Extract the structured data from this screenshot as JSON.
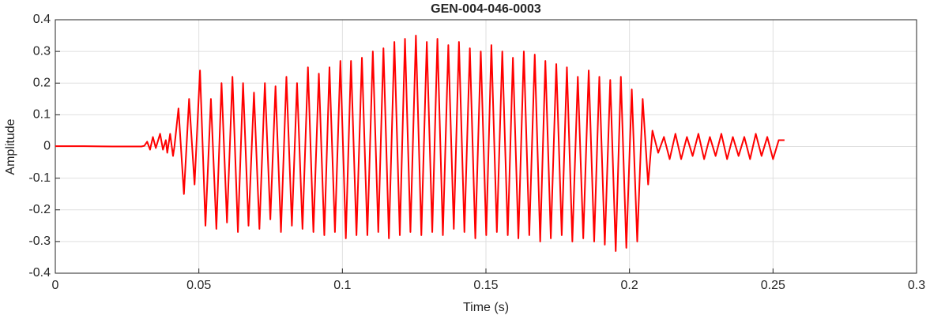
{
  "chart_data": {
    "type": "line",
    "title": "GEN-004-046-0003",
    "xlabel": "Time (s)",
    "ylabel": "Amplitude",
    "color": "#ff0000",
    "grid": true,
    "xlim": [
      0,
      0.3
    ],
    "xticks": [
      0,
      0.05,
      0.1,
      0.15,
      0.2,
      0.25,
      0.3
    ],
    "ylim": [
      -0.4,
      0.4
    ],
    "yticks": [
      -0.4,
      -0.3,
      -0.2,
      -0.1,
      0,
      0.1,
      0.2,
      0.3,
      0.4
    ],
    "x": [
      0,
      0.01,
      0.02,
      0.03,
      0.031,
      0.032,
      0.033,
      0.034,
      0.035,
      0.0365,
      0.0375,
      0.0385,
      0.039,
      0.04,
      0.041,
      0.0415,
      0.0429,
      0.0448,
      0.0466,
      0.0485,
      0.0504,
      0.0523,
      0.0542,
      0.0561,
      0.0579,
      0.0598,
      0.0617,
      0.0636,
      0.0654,
      0.0673,
      0.0692,
      0.0711,
      0.073,
      0.0749,
      0.0767,
      0.0786,
      0.0805,
      0.0824,
      0.0842,
      0.0861,
      0.088,
      0.0899,
      0.0918,
      0.0937,
      0.0955,
      0.0974,
      0.0993,
      0.1012,
      0.103,
      0.1049,
      0.1068,
      0.1087,
      0.1106,
      0.1125,
      0.1143,
      0.1162,
      0.1181,
      0.12,
      0.1218,
      0.1237,
      0.1256,
      0.1275,
      0.1294,
      0.1313,
      0.1331,
      0.135,
      0.1369,
      0.1388,
      0.1406,
      0.1425,
      0.1444,
      0.1463,
      0.1482,
      0.1501,
      0.1519,
      0.1538,
      0.1557,
      0.1576,
      0.1594,
      0.1613,
      0.1632,
      0.1651,
      0.167,
      0.1689,
      0.1707,
      0.1726,
      0.1745,
      0.1764,
      0.1782,
      0.1801,
      0.182,
      0.1839,
      0.1858,
      0.1877,
      0.1895,
      0.1914,
      0.1933,
      0.1952,
      0.197,
      0.1989,
      0.2008,
      0.2027,
      0.2046,
      0.2065,
      0.208,
      0.21,
      0.212,
      0.214,
      0.216,
      0.218,
      0.22,
      0.222,
      0.224,
      0.226,
      0.228,
      0.23,
      0.232,
      0.234,
      0.236,
      0.238,
      0.24,
      0.242,
      0.244,
      0.246,
      0.248,
      0.25,
      0.252,
      0.254
    ],
    "values": [
      0.001,
      0.001,
      0,
      0,
      0.002,
      0.015,
      -0.01,
      0.03,
      -0.005,
      0.04,
      -0.01,
      0.02,
      -0.02,
      0.04,
      -0.03,
      0,
      0.12,
      -0.15,
      0.15,
      -0.12,
      0.24,
      -0.25,
      0.15,
      -0.26,
      0.2,
      -0.24,
      0.22,
      -0.27,
      0.2,
      -0.25,
      0.17,
      -0.26,
      0.2,
      -0.23,
      0.19,
      -0.27,
      0.22,
      -0.25,
      0.2,
      -0.26,
      0.25,
      -0.27,
      0.23,
      -0.28,
      0.25,
      -0.27,
      0.27,
      -0.29,
      0.27,
      -0.28,
      0.28,
      -0.28,
      0.3,
      -0.27,
      0.31,
      -0.29,
      0.33,
      -0.28,
      0.34,
      -0.27,
      0.35,
      -0.28,
      0.33,
      -0.27,
      0.34,
      -0.28,
      0.32,
      -0.26,
      0.33,
      -0.27,
      0.31,
      -0.29,
      0.3,
      -0.28,
      0.32,
      -0.27,
      0.3,
      -0.28,
      0.28,
      -0.29,
      0.3,
      -0.28,
      0.29,
      -0.3,
      0.27,
      -0.29,
      0.26,
      -0.28,
      0.25,
      -0.3,
      0.22,
      -0.29,
      0.24,
      -0.3,
      0.22,
      -0.31,
      0.21,
      -0.33,
      0.22,
      -0.32,
      0.18,
      -0.3,
      0.15,
      -0.12,
      0.05,
      -0.02,
      0.03,
      -0.04,
      0.04,
      -0.04,
      0.03,
      -0.03,
      0.04,
      -0.04,
      0.03,
      -0.03,
      0.04,
      -0.04,
      0.03,
      -0.03,
      0.03,
      -0.04,
      0.04,
      -0.03,
      0.03,
      -0.04,
      0.02,
      0.02
    ]
  }
}
